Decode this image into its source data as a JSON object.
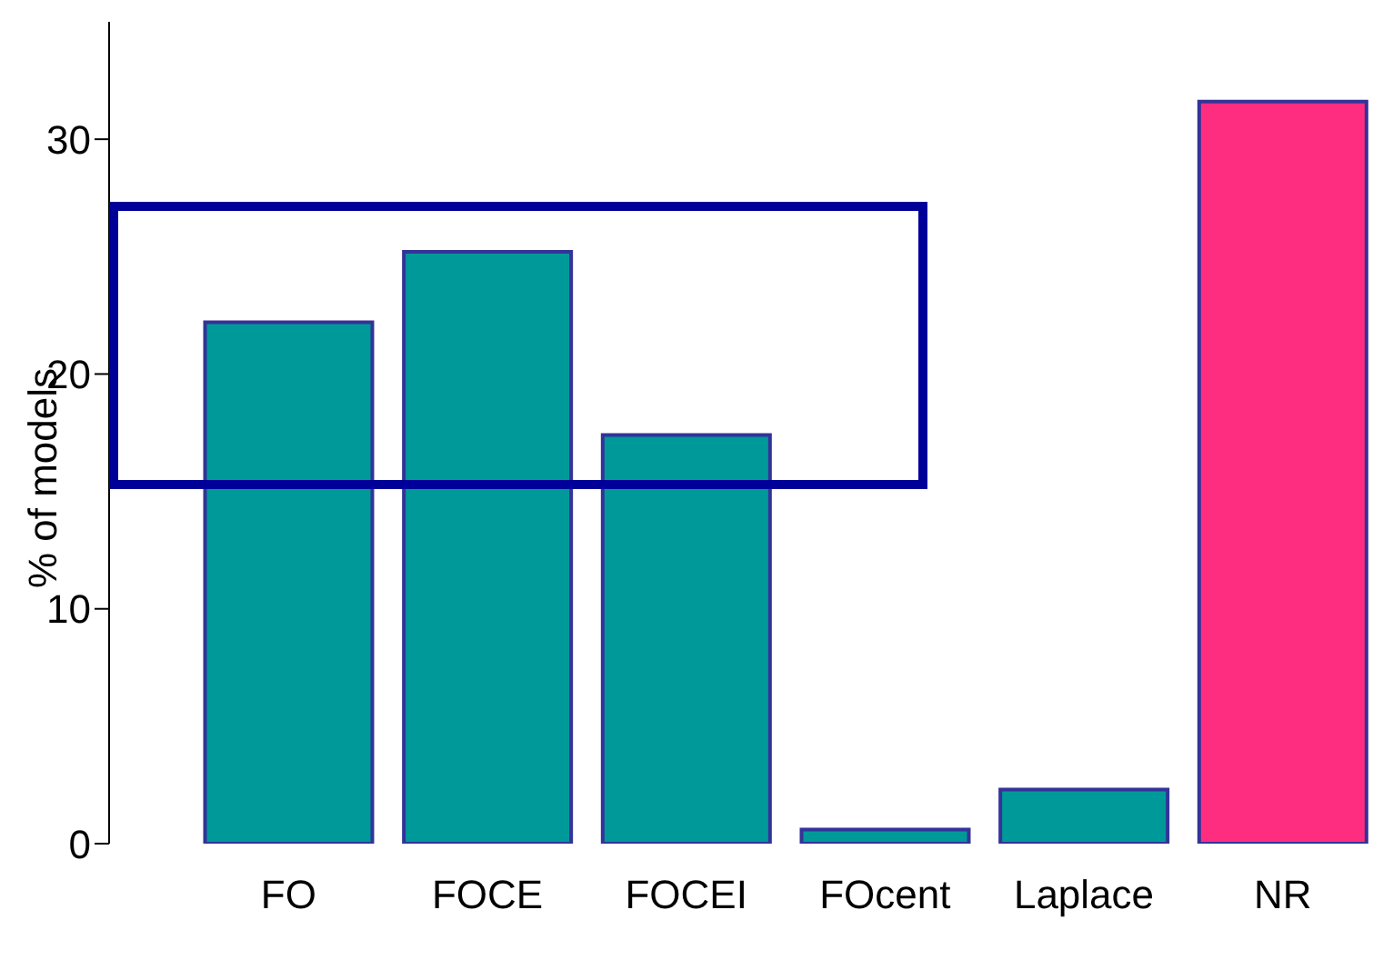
{
  "chart_data": {
    "type": "bar",
    "ylabel": "% of models",
    "categories": [
      "FO",
      "FOCE",
      "FOCEI",
      "FOcent",
      "Laplace",
      "NR"
    ],
    "values": [
      22.2,
      25.2,
      17.4,
      0.6,
      2.3,
      31.6
    ],
    "colors": [
      "#009999",
      "#009999",
      "#009999",
      "#009999",
      "#009999",
      "#ff2d7f"
    ],
    "ylim": [
      0,
      35
    ],
    "yticks": [
      0,
      10,
      20,
      30
    ],
    "grid": false
  }
}
